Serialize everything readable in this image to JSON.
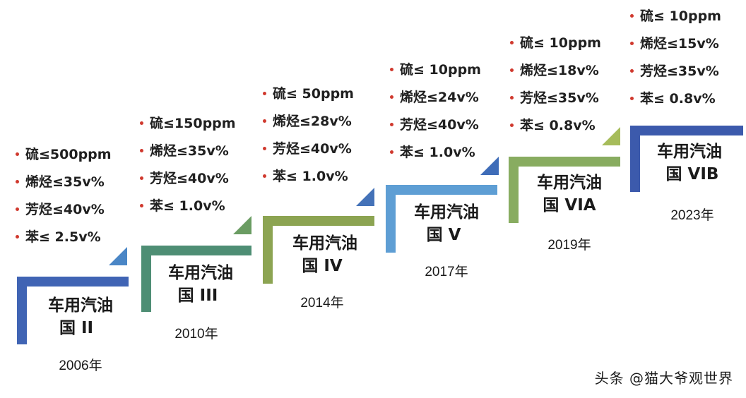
{
  "stages": [
    {
      "label_top": "车用汽油",
      "label_bottom": "国 II",
      "year": "2006年",
      "color": "#4064b4",
      "specs": [
        "硫≤500ppm",
        "烯烃≤35v%",
        "芳烃≤40v%",
        "苯≤ 2.5v%"
      ]
    },
    {
      "label_top": "车用汽油",
      "label_bottom": "国 III",
      "year": "2010年",
      "color": "#4e8e74",
      "specs": [
        "硫≤150ppm",
        "烯烃≤35v%",
        "芳烃≤40v%",
        "苯≤ 1.0v%"
      ]
    },
    {
      "label_top": "车用汽油",
      "label_bottom": "国 IV",
      "year": "2014年",
      "color": "#8ca452",
      "specs": [
        "硫≤ 50ppm",
        "烯烃≤28v%",
        "芳烃≤40v%",
        "苯≤ 1.0v%"
      ]
    },
    {
      "label_top": "车用汽油",
      "label_bottom": "国 V",
      "year": "2017年",
      "color": "#5e9ed4",
      "specs": [
        "硫≤ 10ppm",
        "烯烃≤24v%",
        "芳烃≤40v%",
        "苯≤ 1.0v%"
      ]
    },
    {
      "label_top": "车用汽油",
      "label_bottom": "国 VIA",
      "year": "2019年",
      "color": "#88ac60",
      "specs": [
        "硫≤ 10ppm",
        "烯烃≤18v%",
        "芳烃≤35v%",
        "苯≤ 0.8v%"
      ]
    },
    {
      "label_top": "车用汽油",
      "label_bottom": "国 VIB",
      "year": "2023年",
      "color": "#3c5aac",
      "specs": [
        "硫≤ 10ppm",
        "烯烃≤15v%",
        "芳烃≤35v%",
        "苯≤ 0.8v%"
      ]
    }
  ],
  "watermark": "头条 @猫大爷观世界"
}
